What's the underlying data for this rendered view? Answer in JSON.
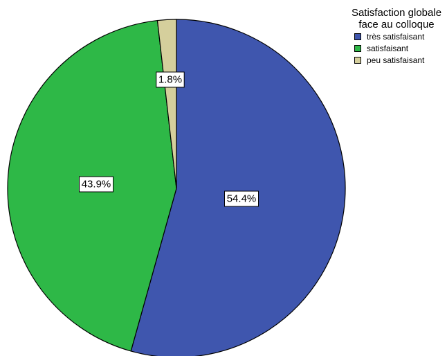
{
  "chart_data": {
    "type": "pie",
    "legend_title": "Satisfaction globale face au colloque",
    "legend_position": "top-right",
    "slices": [
      {
        "label": "très satisfaisant",
        "value": 54.4,
        "value_label": "54.4%",
        "color": "#3f56ae"
      },
      {
        "label": "satisfaisant",
        "value": 43.9,
        "value_label": "43.9%",
        "color": "#2eb847"
      },
      {
        "label": "peu satisfaisant",
        "value": 1.8,
        "value_label": "1.8%",
        "color": "#d5cf9c"
      }
    ]
  }
}
